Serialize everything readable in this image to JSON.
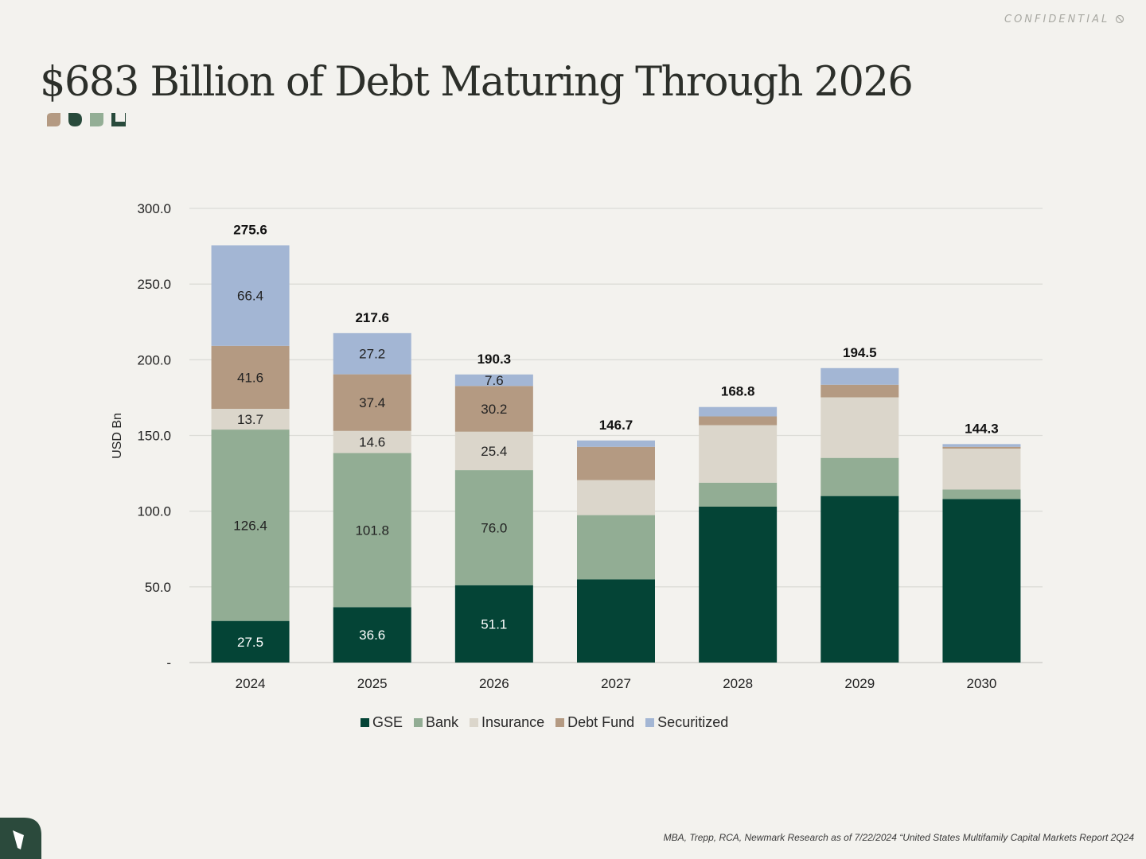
{
  "header": {
    "confidential": "CONFIDENTIAL",
    "confidential_icon": "no-entry-icon"
  },
  "title": "$683 Billion of Debt Maturing Through 2026",
  "decor_colors": [
    "#b49a82",
    "#284a3b",
    "#93ae95",
    "#284a3b"
  ],
  "footnote": "MBA, Trepp, RCA, Newmark Research as of 7/22/2024 “United States Multifamily Capital Markets Report 2Q24",
  "corner_logo_color": "#2b4a3c",
  "chart_data": {
    "type": "bar",
    "stacked": true,
    "ylabel": "USD Bn",
    "ylim": [
      0,
      300
    ],
    "yticks": [
      "-",
      "50.0",
      "100.0",
      "150.0",
      "200.0",
      "250.0",
      "300.0"
    ],
    "grid": true,
    "legend_position": "bottom",
    "categories": [
      "2024",
      "2025",
      "2026",
      "2027",
      "2028",
      "2029",
      "2030"
    ],
    "series": [
      {
        "name": "GSE",
        "color": "#044436",
        "values": [
          27.5,
          36.6,
          51.1,
          54.9,
          103.0,
          110.0,
          108.0
        ],
        "labels": [
          "27.5",
          "36.6",
          "51.1",
          "",
          "",
          "",
          ""
        ]
      },
      {
        "name": "Bank",
        "color": "#92ad94",
        "values": [
          126.4,
          101.8,
          76.0,
          42.5,
          15.8,
          25.2,
          6.3
        ],
        "labels": [
          "126.4",
          "101.8",
          "76.0",
          "",
          "",
          "",
          ""
        ]
      },
      {
        "name": "Insurance",
        "color": "#dbd6cb",
        "values": [
          13.7,
          14.6,
          25.4,
          23.1,
          38.0,
          40.0,
          27.0
        ],
        "labels": [
          "13.7",
          "14.6",
          "25.4",
          "",
          "",
          "",
          ""
        ]
      },
      {
        "name": "Debt Fund",
        "color": "#b49a82",
        "values": [
          41.6,
          37.4,
          30.2,
          22.0,
          5.8,
          8.3,
          1.2
        ],
        "labels": [
          "41.6",
          "37.4",
          "30.2",
          "",
          "",
          "",
          ""
        ]
      },
      {
        "name": "Securitized",
        "color": "#a3b6d4",
        "values": [
          66.4,
          27.2,
          7.6,
          4.2,
          6.2,
          11.0,
          1.8
        ],
        "labels": [
          "66.4",
          "27.2",
          "7.6",
          "",
          "",
          "",
          ""
        ]
      }
    ],
    "totals": [
      "275.6",
      "217.6",
      "190.3",
      "146.7",
      "168.8",
      "194.5",
      "144.3"
    ]
  }
}
